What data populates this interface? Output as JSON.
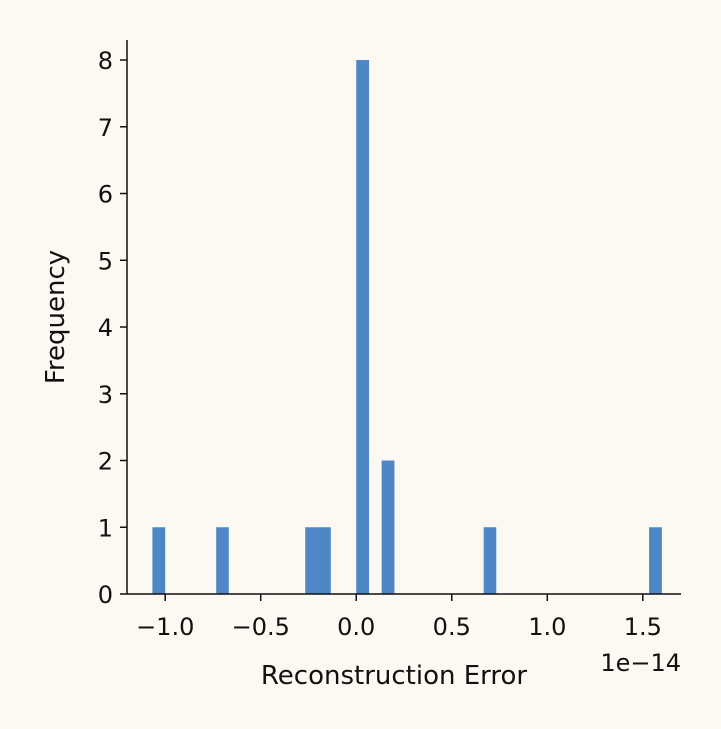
{
  "chart_data": {
    "type": "bar",
    "xlabel": "Reconstruction Error",
    "ylabel": "Frequency",
    "x_offset_label": "1e−14",
    "xlim": [
      -1.2,
      1.7
    ],
    "ylim": [
      0,
      8.3
    ],
    "grid": false,
    "bar_color": "#4f86c6",
    "x_ticks": [
      {
        "value": -1.0,
        "label": "−1.0"
      },
      {
        "value": -0.5,
        "label": "−0.5"
      },
      {
        "value": 0.0,
        "label": "0.0"
      },
      {
        "value": 0.5,
        "label": "0.5"
      },
      {
        "value": 1.0,
        "label": "1.0"
      },
      {
        "value": 1.5,
        "label": "1.5"
      }
    ],
    "y_ticks": [
      {
        "value": 0,
        "label": "0"
      },
      {
        "value": 1,
        "label": "1"
      },
      {
        "value": 2,
        "label": "2"
      },
      {
        "value": 3,
        "label": "3"
      },
      {
        "value": 4,
        "label": "4"
      },
      {
        "value": 5,
        "label": "5"
      },
      {
        "value": 6,
        "label": "6"
      },
      {
        "value": 7,
        "label": "7"
      },
      {
        "value": 8,
        "label": "8"
      }
    ],
    "bins": [
      {
        "x0": -1.067,
        "x1": -1.0,
        "count": 1
      },
      {
        "x0": -0.733,
        "x1": -0.667,
        "count": 1
      },
      {
        "x0": -0.267,
        "x1": -0.2,
        "count": 1
      },
      {
        "x0": -0.2,
        "x1": -0.133,
        "count": 1
      },
      {
        "x0": 0.0,
        "x1": 0.067,
        "count": 8
      },
      {
        "x0": 0.133,
        "x1": 0.2,
        "count": 2
      },
      {
        "x0": 0.667,
        "x1": 0.733,
        "count": 1
      },
      {
        "x0": 1.533,
        "x1": 1.6,
        "count": 1
      }
    ]
  }
}
